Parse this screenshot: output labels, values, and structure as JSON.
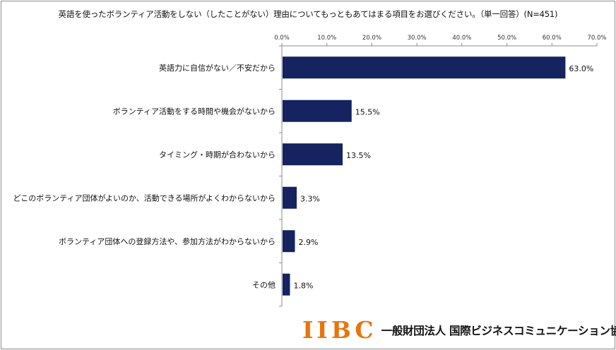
{
  "chart_data": {
    "type": "bar",
    "orientation": "horizontal",
    "title": "英語を使ったボランティア活動をしない（したことがない）理由についてもっともあてはまる項目をお選びください。（単一回答）(N=451)",
    "categories": [
      "英語力に自信がない／不安だから",
      "ボランティア活動をする時間や機会がないから",
      "タイミング・時期が合わないから",
      "どこのボランティア団体がよいのか、活動できる場所がよくわからないから",
      "ボランティア団体への登録方法や、参加方法がわからないから",
      "その他"
    ],
    "values": [
      63.0,
      15.5,
      13.5,
      3.3,
      2.9,
      1.8
    ],
    "value_labels": [
      "63.0%",
      "15.5%",
      "13.5%",
      "3.3%",
      "2.9%",
      "1.8%"
    ],
    "xlim": [
      0,
      70
    ],
    "x_ticks": [
      "0.0%",
      "10.0%",
      "20.0%",
      "30.0%",
      "40.0%",
      "50.0%",
      "60.0%",
      "70.0%"
    ],
    "x_axis_position": "top",
    "grid": false,
    "bar_color": "#152360"
  },
  "logo": {
    "mark": "IIBC",
    "org_name": "一般財団法人 国際ビジネスコミュニケーション協会",
    "mark_color": "#e8750c"
  }
}
